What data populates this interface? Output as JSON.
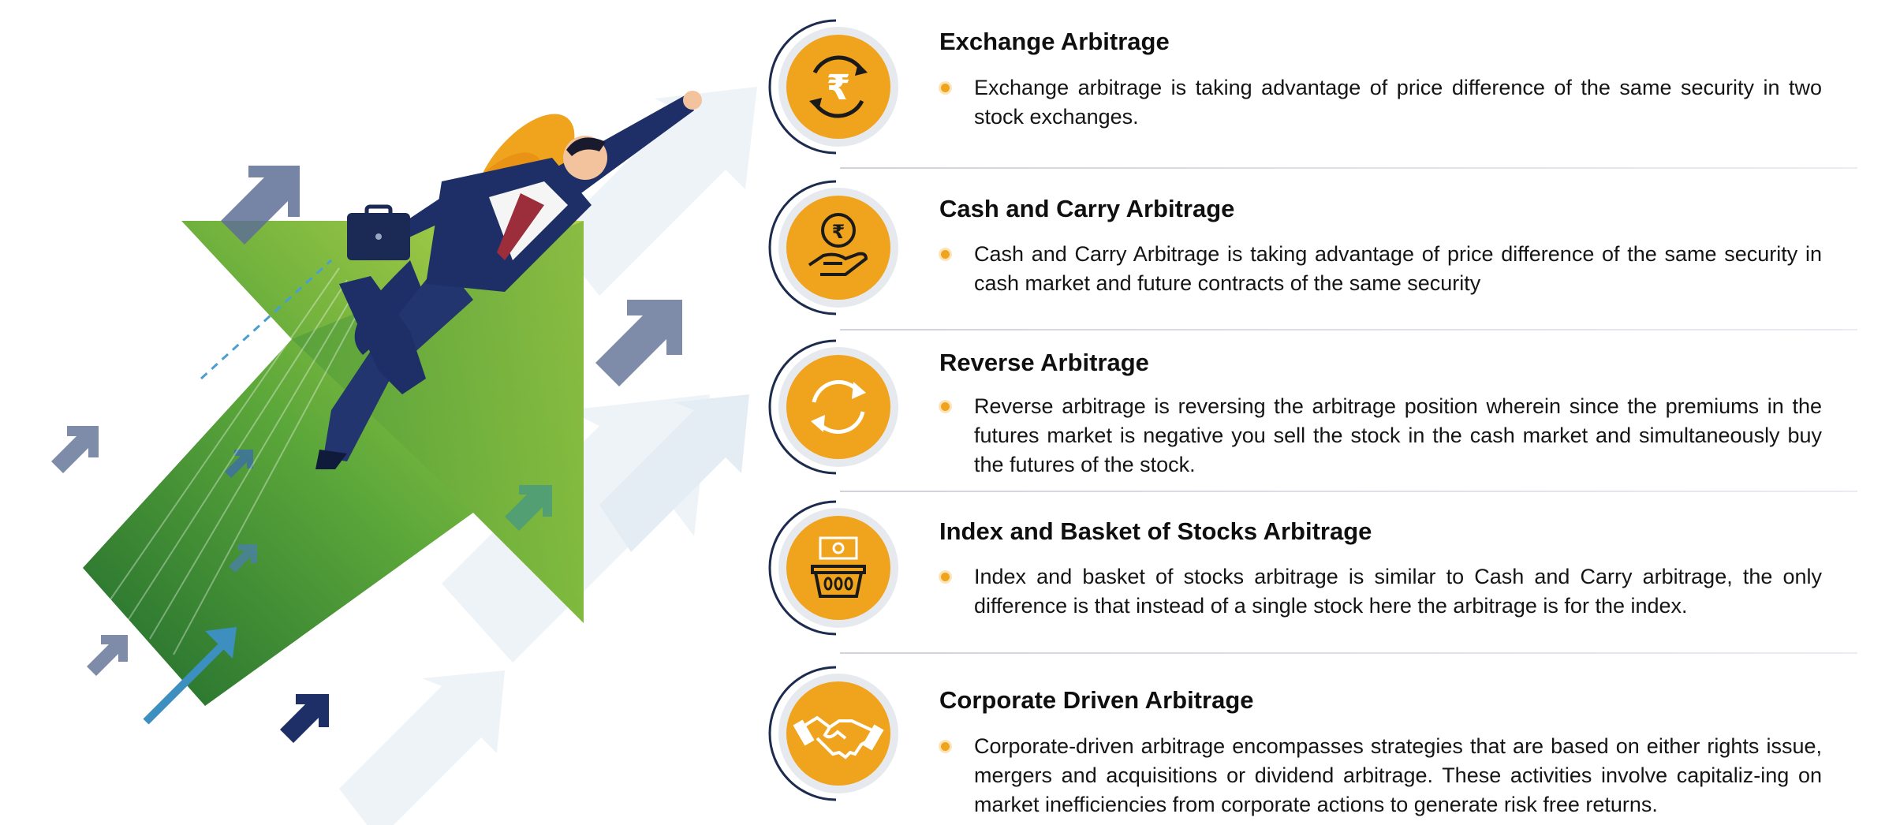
{
  "items": [
    {
      "title": "Exchange Arbitrage",
      "icon": "rupee-exchange-icon",
      "desc": "Exchange arbitrage is taking advantage of price difference of the same security in two stock exchanges."
    },
    {
      "title": "Cash and Carry Arbitrage",
      "icon": "hand-rupee-coin-icon",
      "desc": "Cash and Carry Arbitrage is taking advantage of price difference of the same security in cash market and future contracts of the same security"
    },
    {
      "title": "Reverse Arbitrage",
      "icon": "reverse-cycle-icon",
      "desc": "Reverse arbitrage is reversing the arbitrage position wherein since the premiums in the futures market is negative you sell the stock in the cash market and simultaneously buy the futures of the stock."
    },
    {
      "title": "Index and Basket of Stocks Arbitrage",
      "icon": "basket-icon",
      "desc": "Index and basket of stocks arbitrage is similar to Cash and Carry arbitrage, the only difference is that instead of a single stock here the arbitrage is for the index."
    },
    {
      "title": "Corporate Driven Arbitrage",
      "icon": "handshake-icon",
      "desc": "Corporate-driven arbitrage encompasses strategies that are based on either rights issue, mergers and acquisitions or dividend arbitrage. These activities involve capitaliz-ing on market inefficiencies from corporate actions to generate risk free returns."
    }
  ],
  "colors": {
    "accent": "#f0a31c",
    "ring": "#e3e7ec",
    "arc": "#1d2b4f",
    "green_dark": "#2e7d32",
    "green_light": "#a8cc3a"
  }
}
